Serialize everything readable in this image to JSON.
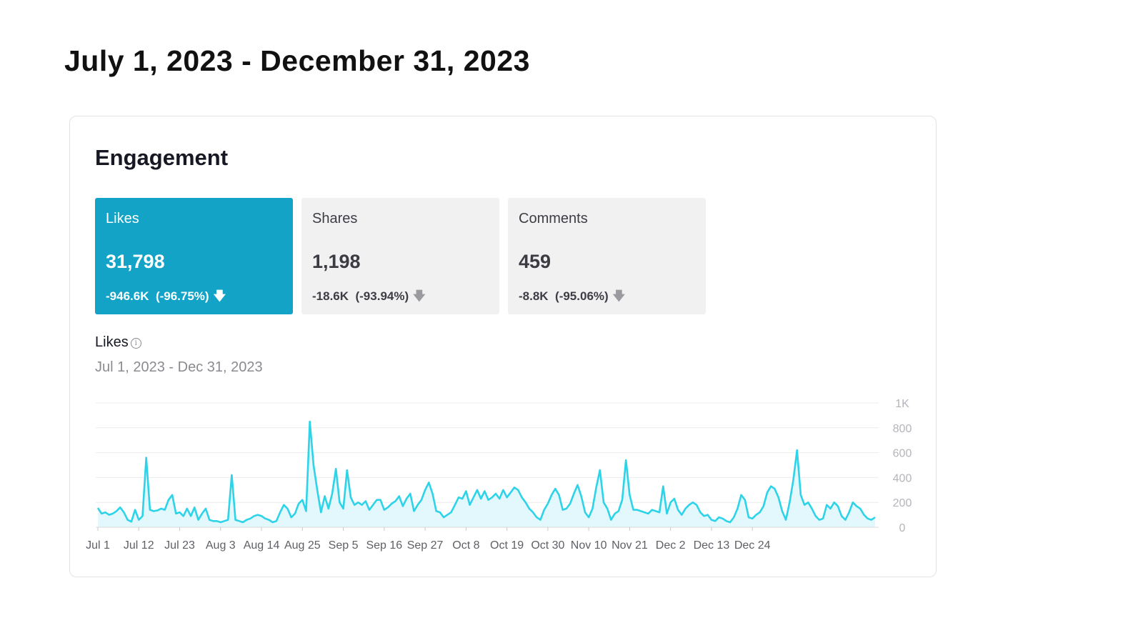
{
  "heading": "July 1, 2023 - December 31, 2023",
  "card": {
    "title": "Engagement",
    "metrics": [
      {
        "label": "Likes",
        "value": "31,798",
        "change": "-946.6K",
        "change_pct": "(-96.75%)",
        "arrow": "down-arrow-icon"
      },
      {
        "label": "Shares",
        "value": "1,198",
        "change": "-18.6K",
        "change_pct": "(-93.94%)",
        "arrow": "down-arrow-icon"
      },
      {
        "label": "Comments",
        "value": "459",
        "change": "-8.8K",
        "change_pct": "(-95.06%)",
        "arrow": "down-arrow-icon"
      }
    ],
    "chart_label": "Likes",
    "chart_range": "Jul 1, 2023 - Dec 31, 2023"
  },
  "colors": {
    "active_tile": "#13a3c6",
    "inactive_tile": "#f1f1f2",
    "line": "#2dd3e8",
    "area": "#e3f8fc",
    "grid": "#ececec"
  },
  "chart_data": {
    "type": "area",
    "title": "Likes",
    "x_start": "Jul 1",
    "x_end": "Dec 31",
    "ylim": [
      0,
      1000
    ],
    "yticks": [
      0,
      200,
      400,
      600,
      800,
      1000
    ],
    "ytick_labels": [
      "0",
      "200",
      "400",
      "600",
      "800",
      "1K"
    ],
    "xtick_labels": [
      "Jul 1",
      "Jul 12",
      "Jul 23",
      "Aug 3",
      "Aug 14",
      "Aug 25",
      "Sep 5",
      "Sep 16",
      "Sep 27",
      "Oct 8",
      "Oct 19",
      "Oct 30",
      "Nov 10",
      "Nov 21",
      "Dec 2",
      "Dec 13",
      "Dec 24"
    ],
    "grid": true,
    "series": [
      {
        "values": [
          155,
          110,
          120,
          100,
          110,
          130,
          160,
          120,
          60,
          45,
          140,
          60,
          90,
          560,
          140,
          130,
          135,
          150,
          140,
          220,
          260,
          110,
          120,
          90,
          150,
          90,
          160,
          60,
          110,
          150,
          60,
          50,
          50,
          40,
          50,
          60,
          420,
          60,
          50,
          40,
          60,
          70,
          90,
          100,
          90,
          70,
          60,
          40,
          50,
          120,
          180,
          150,
          80,
          110,
          190,
          220,
          130,
          850,
          500,
          300,
          120,
          250,
          150,
          270,
          470,
          200,
          150,
          460,
          240,
          180,
          200,
          180,
          210,
          140,
          180,
          220,
          220,
          140,
          160,
          190,
          210,
          250,
          170,
          230,
          270,
          130,
          180,
          220,
          300,
          360,
          270,
          130,
          120,
          80,
          100,
          120,
          180,
          240,
          230,
          290,
          180,
          240,
          300,
          230,
          290,
          220,
          240,
          270,
          230,
          300,
          240,
          280,
          320,
          300,
          240,
          200,
          150,
          120,
          80,
          60,
          140,
          190,
          260,
          310,
          260,
          140,
          150,
          190,
          270,
          340,
          250,
          120,
          80,
          150,
          320,
          460,
          200,
          150,
          60,
          110,
          130,
          220,
          540,
          260,
          140,
          140,
          130,
          120,
          110,
          140,
          130,
          120,
          330,
          110,
          200,
          230,
          140,
          100,
          150,
          180,
          200,
          180,
          120,
          90,
          100,
          60,
          50,
          80,
          70,
          50,
          40,
          80,
          150,
          260,
          220,
          80,
          70,
          100,
          120,
          170,
          280,
          330,
          310,
          240,
          130,
          60,
          200,
          380,
          620,
          260,
          180,
          200,
          150,
          90,
          60,
          70,
          180,
          150,
          200,
          170,
          90,
          60,
          120,
          200,
          170,
          150,
          100,
          70,
          60,
          80
        ]
      }
    ]
  }
}
